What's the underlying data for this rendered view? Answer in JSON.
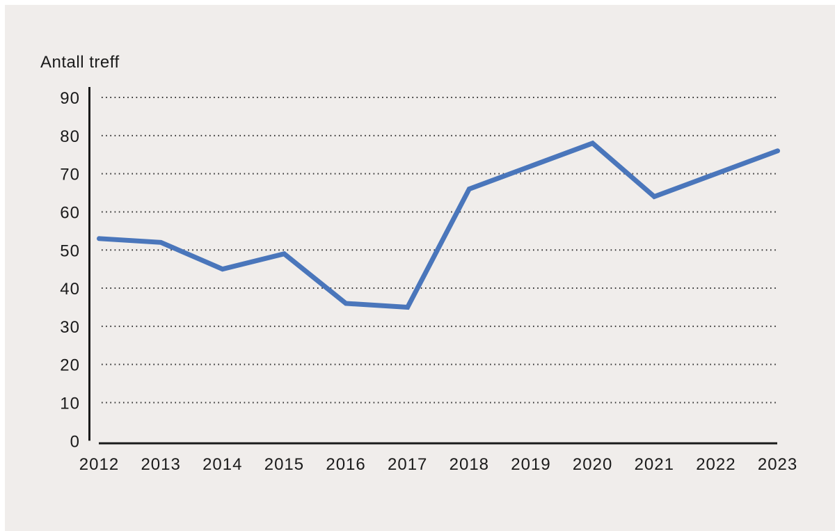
{
  "panel": {
    "background": "#f0edeb",
    "page_background": "#ffffff"
  },
  "chart_data": {
    "type": "line",
    "ylabel": "Antall treff",
    "categories": [
      "2012",
      "2013",
      "2014",
      "2015",
      "2016",
      "2017",
      "2018",
      "2019",
      "2020",
      "2021",
      "2022",
      "2023"
    ],
    "series": [
      {
        "name": "Antall treff",
        "values": [
          53,
          52,
          45,
          49,
          36,
          35,
          66,
          72,
          78,
          64,
          70,
          76
        ],
        "color": "#4a76bb"
      }
    ],
    "ylim": [
      0,
      90
    ],
    "yticks": [
      0,
      10,
      20,
      30,
      40,
      50,
      60,
      70,
      80,
      90
    ],
    "grid": "horizontal-dotted",
    "legend": "none",
    "axis_color": "#1a1a1a",
    "text_color": "#1a1a1a",
    "grid_color": "#2e2e2e"
  }
}
